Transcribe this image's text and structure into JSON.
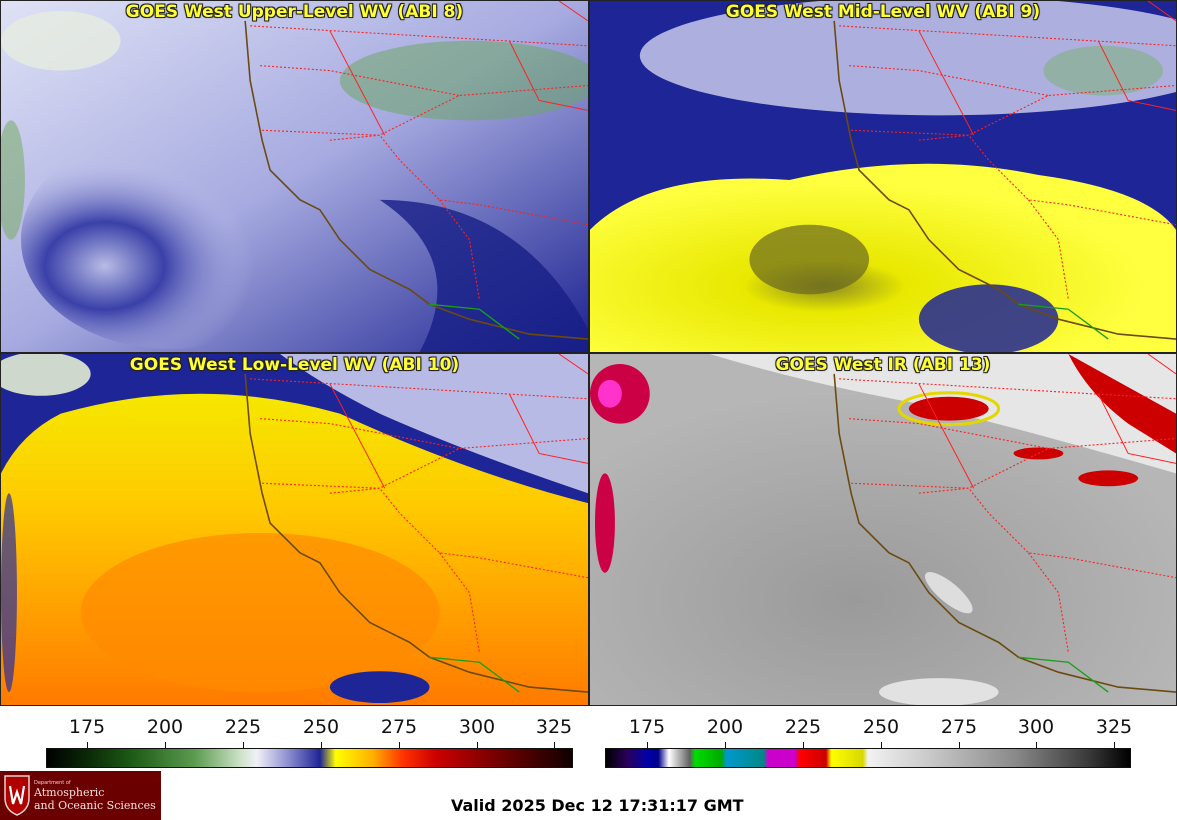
{
  "panels": [
    {
      "title": "GOES West Upper-Level WV (ABI 8)"
    },
    {
      "title": "GOES West Mid-Level WV (ABI 9)"
    },
    {
      "title": "GOES West Low-Level WV (ABI 10)"
    },
    {
      "title": "GOES West IR (ABI 13)"
    }
  ],
  "colorbars": {
    "wv": {
      "ticks": [
        "175",
        "200",
        "225",
        "250",
        "275",
        "300",
        "325"
      ]
    },
    "ir": {
      "ticks": [
        "175",
        "200",
        "225",
        "250",
        "275",
        "300",
        "325"
      ]
    }
  },
  "logo": {
    "dept": "Department of",
    "line1": "Atmospheric",
    "line2": "and Oceanic Sciences"
  },
  "valid_time": "Valid 2025 Dec 12 17:31:17 GMT",
  "colors": {
    "title_text": "#ffff33",
    "state_borders": "#ff2020",
    "coastline": "#6b4a10",
    "logo_bg": "#6b0000"
  }
}
